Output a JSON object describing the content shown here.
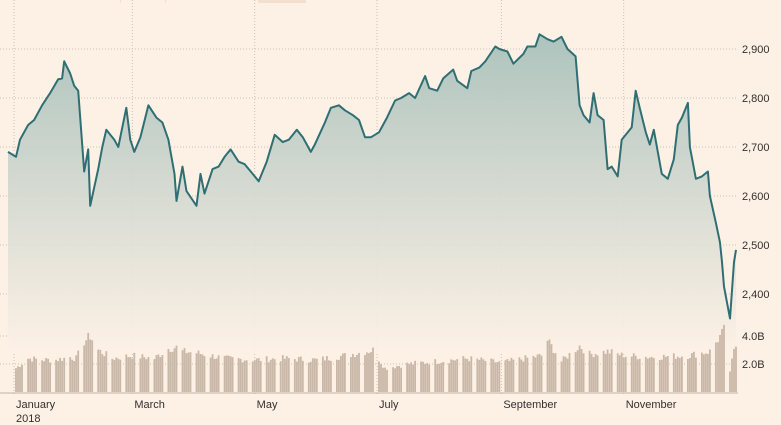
{
  "chart_data": {
    "type": "line",
    "subtype": "price line with area fill and volume bars",
    "colors": {
      "background": "#fdf1e6",
      "line": "#2f6f73",
      "area_top": "#a9c1bb",
      "volume": "#c9b7a7",
      "grid": "#cdbfb3"
    },
    "x_labels": [
      {
        "label": "January",
        "sub": "2018",
        "date": "2018-01-01"
      },
      {
        "label": "March",
        "sub": "",
        "date": "2018-03-01"
      },
      {
        "label": "May",
        "sub": "",
        "date": "2018-05-01"
      },
      {
        "label": "July",
        "sub": "",
        "date": "2018-07-01"
      },
      {
        "label": "September",
        "sub": "",
        "date": "2018-09-01"
      },
      {
        "label": "November",
        "sub": "",
        "date": "2018-11-01"
      }
    ],
    "price_axis": {
      "ticks": [
        "2,900",
        "2,800",
        "2,700",
        "2,600",
        "2,500",
        "2,400"
      ],
      "values": [
        2900,
        2800,
        2700,
        2600,
        2500,
        2400
      ],
      "range": [
        2340,
        2960
      ]
    },
    "volume_axis": {
      "ticks": [
        "4.0B",
        "2.0B"
      ],
      "values": [
        4.0,
        2.0
      ],
      "range": [
        0,
        5.2
      ]
    },
    "price_series": [
      [
        "2017-12-29",
        2690
      ],
      [
        "2018-01-02",
        2680
      ],
      [
        "2018-01-04",
        2715
      ],
      [
        "2018-01-08",
        2745
      ],
      [
        "2018-01-11",
        2755
      ],
      [
        "2018-01-15",
        2785
      ],
      [
        "2018-01-19",
        2810
      ],
      [
        "2018-01-23",
        2838
      ],
      [
        "2018-01-25",
        2840
      ],
      [
        "2018-01-26",
        2875
      ],
      [
        "2018-01-29",
        2850
      ],
      [
        "2018-01-31",
        2825
      ],
      [
        "2018-02-02",
        2815
      ],
      [
        "2018-02-05",
        2650
      ],
      [
        "2018-02-07",
        2695
      ],
      [
        "2018-02-08",
        2580
      ],
      [
        "2018-02-12",
        2655
      ],
      [
        "2018-02-14",
        2700
      ],
      [
        "2018-02-16",
        2735
      ],
      [
        "2018-02-20",
        2715
      ],
      [
        "2018-02-22",
        2700
      ],
      [
        "2018-02-26",
        2780
      ],
      [
        "2018-02-28",
        2715
      ],
      [
        "2018-03-02",
        2690
      ],
      [
        "2018-03-05",
        2720
      ],
      [
        "2018-03-09",
        2785
      ],
      [
        "2018-03-13",
        2760
      ],
      [
        "2018-03-16",
        2750
      ],
      [
        "2018-03-19",
        2715
      ],
      [
        "2018-03-22",
        2645
      ],
      [
        "2018-03-23",
        2590
      ],
      [
        "2018-03-26",
        2660
      ],
      [
        "2018-03-28",
        2610
      ],
      [
        "2018-04-02",
        2580
      ],
      [
        "2018-04-04",
        2645
      ],
      [
        "2018-04-06",
        2605
      ],
      [
        "2018-04-10",
        2655
      ],
      [
        "2018-04-13",
        2660
      ],
      [
        "2018-04-16",
        2680
      ],
      [
        "2018-04-19",
        2695
      ],
      [
        "2018-04-23",
        2670
      ],
      [
        "2018-04-26",
        2665
      ],
      [
        "2018-04-30",
        2645
      ],
      [
        "2018-05-03",
        2630
      ],
      [
        "2018-05-07",
        2670
      ],
      [
        "2018-05-11",
        2725
      ],
      [
        "2018-05-15",
        2710
      ],
      [
        "2018-05-18",
        2715
      ],
      [
        "2018-05-22",
        2735
      ],
      [
        "2018-05-25",
        2720
      ],
      [
        "2018-05-29",
        2690
      ],
      [
        "2018-05-31",
        2705
      ],
      [
        "2018-06-05",
        2750
      ],
      [
        "2018-06-08",
        2780
      ],
      [
        "2018-06-12",
        2785
      ],
      [
        "2018-06-15",
        2775
      ],
      [
        "2018-06-19",
        2765
      ],
      [
        "2018-06-22",
        2755
      ],
      [
        "2018-06-25",
        2720
      ],
      [
        "2018-06-28",
        2720
      ],
      [
        "2018-07-02",
        2730
      ],
      [
        "2018-07-06",
        2760
      ],
      [
        "2018-07-10",
        2795
      ],
      [
        "2018-07-13",
        2800
      ],
      [
        "2018-07-17",
        2810
      ],
      [
        "2018-07-20",
        2800
      ],
      [
        "2018-07-25",
        2845
      ],
      [
        "2018-07-27",
        2820
      ],
      [
        "2018-07-31",
        2815
      ],
      [
        "2018-08-03",
        2840
      ],
      [
        "2018-08-08",
        2858
      ],
      [
        "2018-08-10",
        2835
      ],
      [
        "2018-08-15",
        2820
      ],
      [
        "2018-08-17",
        2855
      ],
      [
        "2018-08-21",
        2862
      ],
      [
        "2018-08-24",
        2875
      ],
      [
        "2018-08-29",
        2905
      ],
      [
        "2018-08-31",
        2900
      ],
      [
        "2018-09-04",
        2895
      ],
      [
        "2018-09-07",
        2870
      ],
      [
        "2018-09-12",
        2890
      ],
      [
        "2018-09-14",
        2905
      ],
      [
        "2018-09-18",
        2905
      ],
      [
        "2018-09-20",
        2930
      ],
      [
        "2018-09-24",
        2920
      ],
      [
        "2018-09-27",
        2915
      ],
      [
        "2018-10-01",
        2925
      ],
      [
        "2018-10-04",
        2900
      ],
      [
        "2018-10-08",
        2885
      ],
      [
        "2018-10-10",
        2785
      ],
      [
        "2018-10-12",
        2765
      ],
      [
        "2018-10-15",
        2750
      ],
      [
        "2018-10-17",
        2810
      ],
      [
        "2018-10-19",
        2765
      ],
      [
        "2018-10-22",
        2755
      ],
      [
        "2018-10-24",
        2655
      ],
      [
        "2018-10-26",
        2660
      ],
      [
        "2018-10-29",
        2640
      ],
      [
        "2018-10-31",
        2715
      ],
      [
        "2018-11-02",
        2725
      ],
      [
        "2018-11-05",
        2740
      ],
      [
        "2018-11-07",
        2815
      ],
      [
        "2018-11-09",
        2780
      ],
      [
        "2018-11-12",
        2730
      ],
      [
        "2018-11-14",
        2705
      ],
      [
        "2018-11-16",
        2735
      ],
      [
        "2018-11-20",
        2645
      ],
      [
        "2018-11-23",
        2635
      ],
      [
        "2018-11-26",
        2675
      ],
      [
        "2018-11-28",
        2745
      ],
      [
        "2018-11-30",
        2760
      ],
      [
        "2018-12-03",
        2790
      ],
      [
        "2018-12-04",
        2700
      ],
      [
        "2018-12-07",
        2635
      ],
      [
        "2018-12-10",
        2640
      ],
      [
        "2018-12-13",
        2650
      ],
      [
        "2018-12-14",
        2600
      ],
      [
        "2018-12-17",
        2545
      ],
      [
        "2018-12-19",
        2505
      ],
      [
        "2018-12-20",
        2465
      ],
      [
        "2018-12-21",
        2415
      ],
      [
        "2018-12-24",
        2350
      ],
      [
        "2018-12-26",
        2465
      ],
      [
        "2018-12-27",
        2490
      ]
    ],
    "volume_series": [
      [
        "2018-01-02",
        1.7
      ],
      [
        "2018-01-08",
        2.4
      ],
      [
        "2018-01-15",
        2.3
      ],
      [
        "2018-01-22",
        2.3
      ],
      [
        "2018-01-29",
        2.5
      ],
      [
        "2018-02-01",
        2.4
      ],
      [
        "2018-02-05",
        3.6
      ],
      [
        "2018-02-08",
        4.0
      ],
      [
        "2018-02-12",
        3.0
      ],
      [
        "2018-02-19",
        2.4
      ],
      [
        "2018-03-01",
        2.6
      ],
      [
        "2018-03-12",
        2.4
      ],
      [
        "2018-03-19",
        3.1
      ],
      [
        "2018-03-23",
        3.2
      ],
      [
        "2018-03-26",
        2.9
      ],
      [
        "2018-04-02",
        2.8
      ],
      [
        "2018-04-09",
        2.6
      ],
      [
        "2018-04-16",
        2.4
      ],
      [
        "2018-05-01",
        2.3
      ],
      [
        "2018-05-15",
        2.4
      ],
      [
        "2018-06-01",
        2.3
      ],
      [
        "2018-06-15",
        2.6
      ],
      [
        "2018-06-29",
        3.0
      ],
      [
        "2018-07-05",
        1.7
      ],
      [
        "2018-07-16",
        2.0
      ],
      [
        "2018-08-01",
        2.2
      ],
      [
        "2018-08-15",
        2.4
      ],
      [
        "2018-09-01",
        2.1
      ],
      [
        "2018-09-21",
        2.6
      ],
      [
        "2018-09-24",
        3.7
      ],
      [
        "2018-10-01",
        2.2
      ],
      [
        "2018-10-10",
        3.3
      ],
      [
        "2018-10-15",
        2.7
      ],
      [
        "2018-10-24",
        2.9
      ],
      [
        "2018-11-01",
        2.6
      ],
      [
        "2018-11-15",
        2.5
      ],
      [
        "2018-12-03",
        2.6
      ],
      [
        "2018-12-14",
        2.9
      ],
      [
        "2018-12-21",
        4.4
      ],
      [
        "2018-12-24",
        1.5
      ],
      [
        "2018-12-26",
        2.9
      ],
      [
        "2018-12-27",
        3.3
      ]
    ]
  }
}
